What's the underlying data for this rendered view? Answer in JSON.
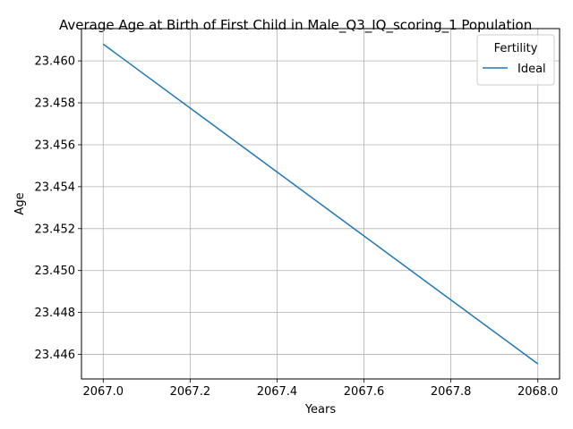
{
  "chart_data": {
    "type": "line",
    "title": "Average Age at Birth of First Child in Male_Q3_IQ_scoring_1 Population",
    "xlabel": "Years",
    "ylabel": "Age",
    "xlim": [
      2066.95,
      2068.05
    ],
    "ylim": [
      23.44483,
      23.46154
    ],
    "xticks": [
      2067.0,
      2067.2,
      2067.4,
      2067.6,
      2067.8,
      2068.0
    ],
    "xtick_labels": [
      "2067.0",
      "2067.2",
      "2067.4",
      "2067.6",
      "2067.8",
      "2068.0"
    ],
    "yticks": [
      23.446,
      23.448,
      23.45,
      23.452,
      23.454,
      23.456,
      23.458,
      23.46
    ],
    "ytick_labels": [
      "23.446",
      "23.448",
      "23.450",
      "23.452",
      "23.454",
      "23.456",
      "23.458",
      "23.460"
    ],
    "grid": true,
    "legend": {
      "title": "Fertility",
      "position": "top-right"
    },
    "series": [
      {
        "name": "Ideal",
        "color": "#1f77b4",
        "x": [
          2067.0,
          2068.0
        ],
        "y": [
          23.4608,
          23.44555
        ]
      }
    ]
  }
}
